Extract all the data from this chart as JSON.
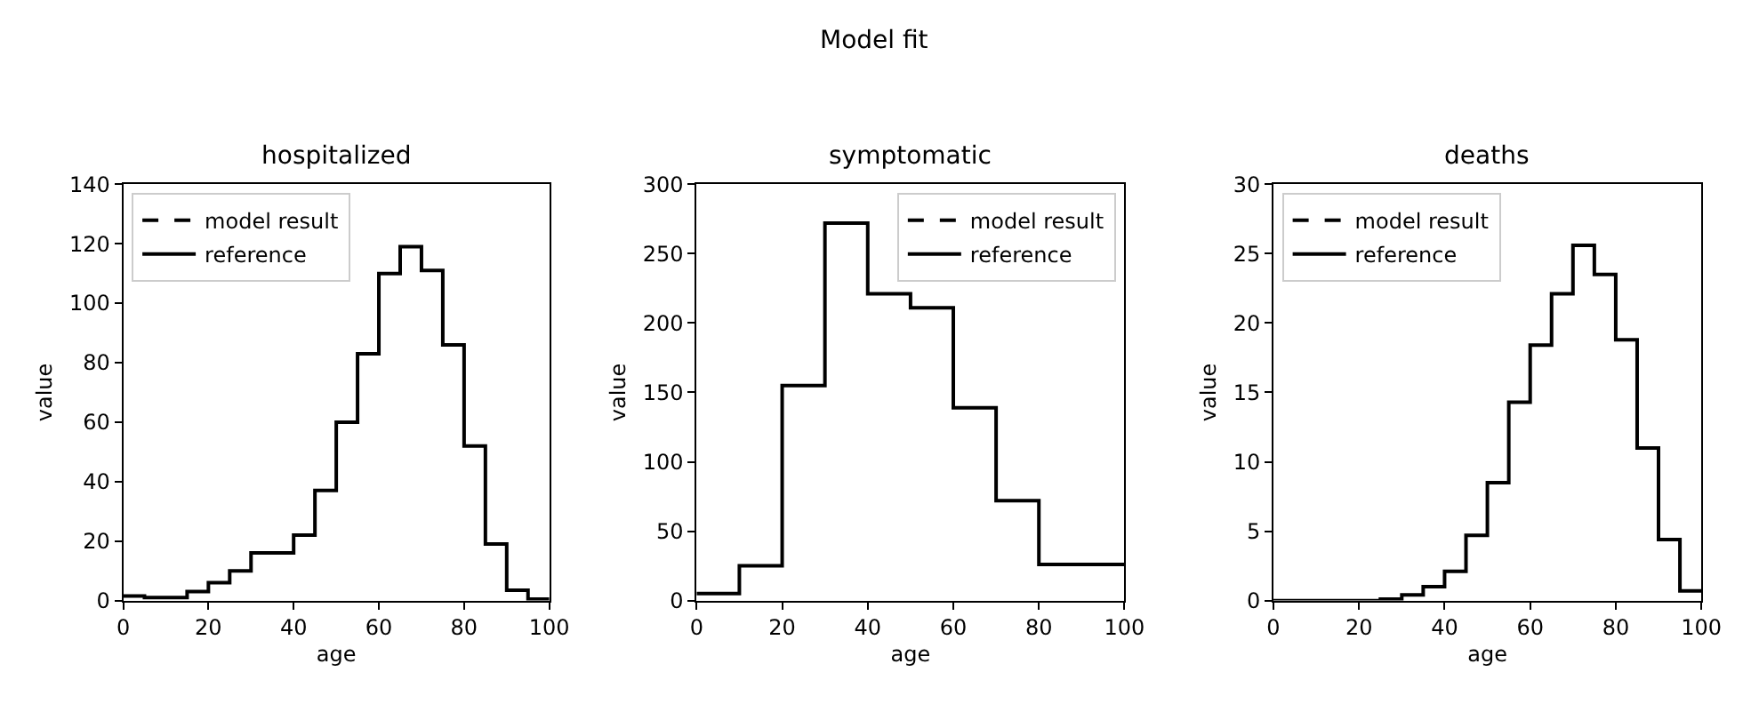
{
  "chart_data": [
    {
      "type": "step",
      "title": "hospitalized",
      "xlabel": "age",
      "ylabel": "value",
      "annotations": [
        "Model fit"
      ],
      "x": [
        0,
        5,
        10,
        15,
        20,
        25,
        30,
        35,
        40,
        45,
        50,
        55,
        60,
        65,
        70,
        75,
        80,
        85,
        90,
        95,
        100
      ],
      "xlim": [
        0,
        100
      ],
      "xticks": [
        0,
        20,
        40,
        60,
        80,
        100
      ],
      "ylim": [
        0,
        140
      ],
      "yticks": [
        0,
        20,
        40,
        60,
        80,
        100,
        120,
        140
      ],
      "legend": "top left",
      "series": [
        {
          "name": "model result",
          "color": "#000000",
          "line_style": "dashed",
          "values": [
            null,
            null,
            null,
            null,
            null,
            null,
            null,
            null,
            null,
            null,
            null,
            null,
            null,
            null,
            null,
            null,
            null,
            null,
            null,
            null,
            null
          ]
        },
        {
          "name": "reference",
          "color": "#000000",
          "line_style": "solid",
          "values": [
            1.5,
            1,
            1,
            3,
            6,
            10,
            16,
            16,
            22,
            37,
            60,
            83,
            110,
            119,
            111,
            86,
            52,
            19,
            3.5,
            0.5,
            0.5
          ]
        }
      ]
    },
    {
      "type": "step",
      "title": "symptomatic",
      "xlabel": "age",
      "ylabel": "value",
      "x": [
        0,
        10,
        20,
        30,
        40,
        50,
        60,
        70,
        80,
        90,
        100
      ],
      "xlim": [
        0,
        100
      ],
      "xticks": [
        0,
        20,
        40,
        60,
        80,
        100
      ],
      "ylim": [
        0,
        300
      ],
      "yticks": [
        0,
        50,
        100,
        150,
        200,
        250,
        300
      ],
      "legend": "top right",
      "series": [
        {
          "name": "model result",
          "color": "#000000",
          "line_style": "dashed",
          "values": [
            null,
            null,
            null,
            null,
            null,
            null,
            null,
            null,
            null,
            null,
            null
          ]
        },
        {
          "name": "reference",
          "color": "#000000",
          "line_style": "solid",
          "values": [
            5,
            25,
            155,
            272,
            221,
            211,
            139,
            72,
            26,
            26,
            26
          ]
        }
      ]
    },
    {
      "type": "step",
      "title": "deaths",
      "xlabel": "age",
      "ylabel": "value",
      "x": [
        0,
        5,
        10,
        15,
        20,
        25,
        30,
        35,
        40,
        45,
        50,
        55,
        60,
        65,
        70,
        75,
        80,
        85,
        90,
        95,
        100
      ],
      "xlim": [
        0,
        100
      ],
      "xticks": [
        0,
        20,
        40,
        60,
        80,
        100
      ],
      "ylim": [
        0,
        30
      ],
      "yticks": [
        0,
        5,
        10,
        15,
        20,
        25,
        30
      ],
      "legend": "top left",
      "series": [
        {
          "name": "model result",
          "color": "#000000",
          "line_style": "dashed",
          "values": [
            null,
            null,
            null,
            null,
            null,
            null,
            null,
            null,
            null,
            null,
            null,
            null,
            null,
            null,
            null,
            null,
            null,
            null,
            null,
            null,
            null
          ]
        },
        {
          "name": "reference",
          "color": "#000000",
          "line_style": "solid",
          "values": [
            0,
            0,
            0,
            0,
            0,
            0.1,
            0.4,
            1,
            2.1,
            4.7,
            8.5,
            14.3,
            18.4,
            22.1,
            25.6,
            23.5,
            18.8,
            11,
            4.4,
            0.7,
            0.7
          ]
        }
      ]
    }
  ]
}
